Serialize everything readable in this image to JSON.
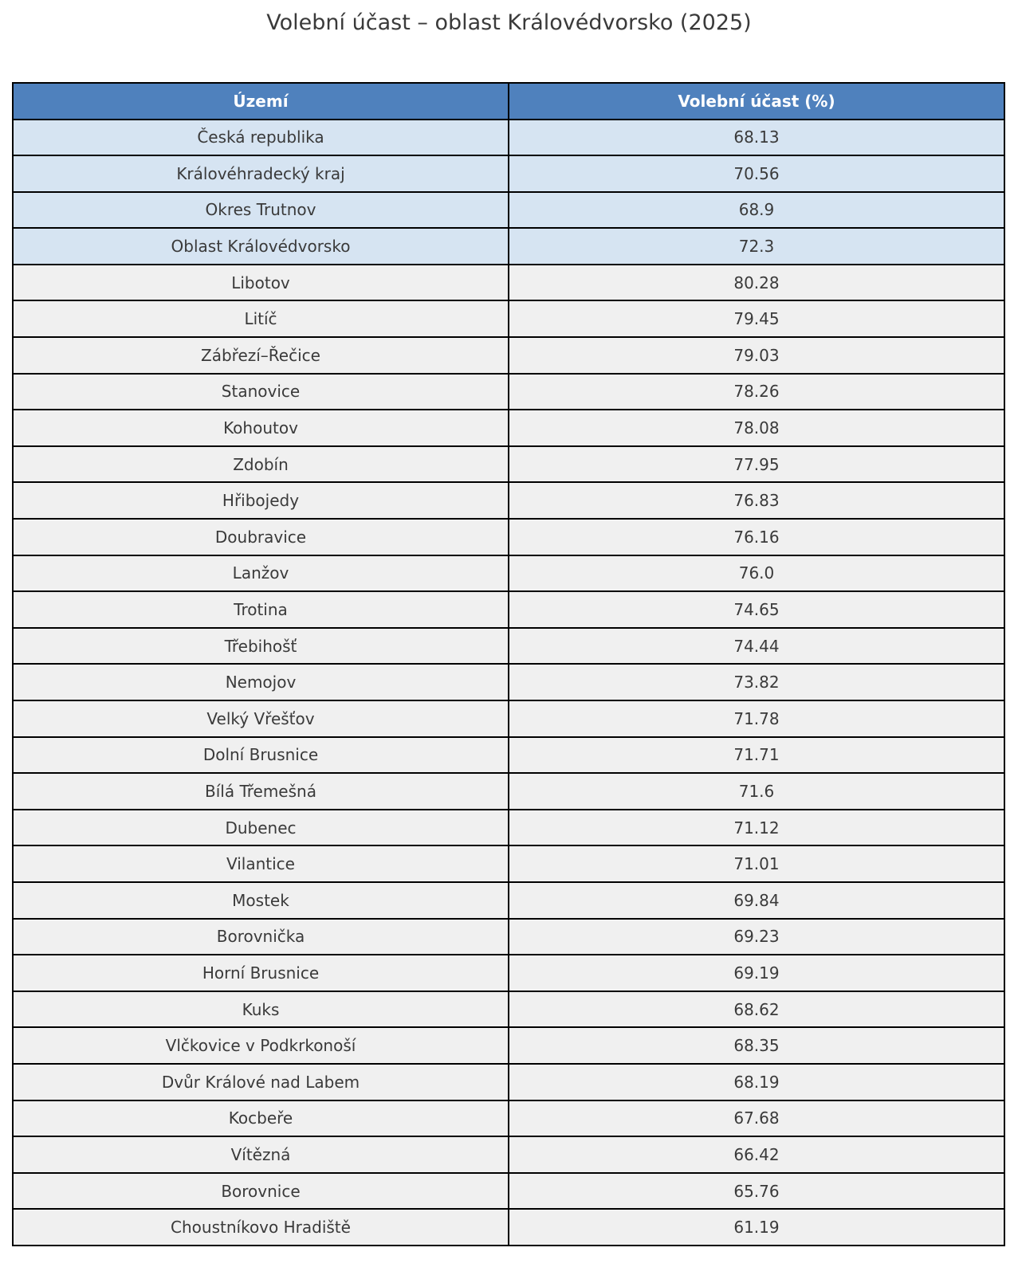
{
  "title": "Volební účast – oblast Královédvorsko (2025)",
  "colors": {
    "header_bg": "#4F81BD",
    "header_text": "#FFFFFF",
    "summary_row_bg": "#D6E4F2",
    "row_bg": "#F0F0F0",
    "border": "#000000",
    "text": "#3A3A3A"
  },
  "chart_data": {
    "type": "table",
    "title": "Volební účast – oblast Královédvorsko (2025)",
    "columns": [
      "Území",
      "Volební účast (%)"
    ],
    "highlighted_rows": [
      0,
      1,
      2,
      3
    ],
    "rows": [
      [
        "Česká republika",
        "68.13"
      ],
      [
        "Královéhradecký kraj",
        "70.56"
      ],
      [
        "Okres Trutnov",
        "68.9"
      ],
      [
        "Oblast Královédvorsko",
        "72.3"
      ],
      [
        "Libotov",
        "80.28"
      ],
      [
        "Litíč",
        "79.45"
      ],
      [
        "Zábřezí–Řečice",
        "79.03"
      ],
      [
        "Stanovice",
        "78.26"
      ],
      [
        "Kohoutov",
        "78.08"
      ],
      [
        "Zdobín",
        "77.95"
      ],
      [
        "Hřibojedy",
        "76.83"
      ],
      [
        "Doubravice",
        "76.16"
      ],
      [
        "Lanžov",
        "76.0"
      ],
      [
        "Trotina",
        "74.65"
      ],
      [
        "Třebihošť",
        "74.44"
      ],
      [
        "Nemojov",
        "73.82"
      ],
      [
        "Velký Vřešťov",
        "71.78"
      ],
      [
        "Dolní Brusnice",
        "71.71"
      ],
      [
        "Bílá Třemešná",
        "71.6"
      ],
      [
        "Dubenec",
        "71.12"
      ],
      [
        "Vilantice",
        "71.01"
      ],
      [
        "Mostek",
        "69.84"
      ],
      [
        "Borovnička",
        "69.23"
      ],
      [
        "Horní Brusnice",
        "69.19"
      ],
      [
        "Kuks",
        "68.62"
      ],
      [
        "Vlčkovice v Podkrkonoší",
        "68.35"
      ],
      [
        "Dvůr Králové nad Labem",
        "68.19"
      ],
      [
        "Kocbeře",
        "67.68"
      ],
      [
        "Vítězná",
        "66.42"
      ],
      [
        "Borovnice",
        "65.76"
      ],
      [
        "Choustníkovo Hradiště",
        "61.19"
      ]
    ]
  }
}
